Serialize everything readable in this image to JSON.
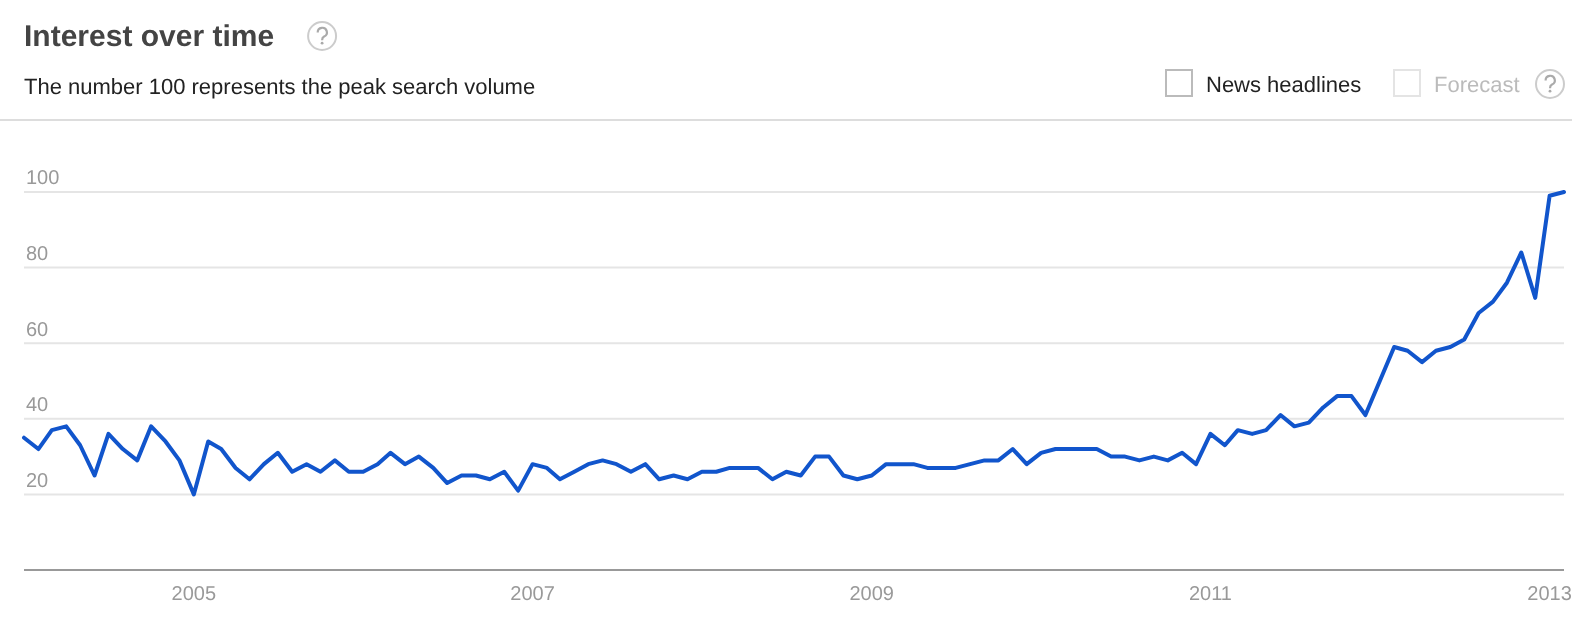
{
  "chart_data": {
    "type": "line",
    "title": "Interest over time",
    "subtitle": "The number 100 represents the peak search volume",
    "annotations": [
      "News headlines",
      "Forecast"
    ],
    "x": [
      "2004-01",
      "2004-02",
      "2004-03",
      "2004-04",
      "2004-05",
      "2004-06",
      "2004-07",
      "2004-08",
      "2004-09",
      "2004-10",
      "2004-11",
      "2004-12",
      "2005-01",
      "2005-02",
      "2005-03",
      "2005-04",
      "2005-05",
      "2005-06",
      "2005-07",
      "2005-08",
      "2005-09",
      "2005-10",
      "2005-11",
      "2005-12",
      "2006-01",
      "2006-02",
      "2006-03",
      "2006-04",
      "2006-05",
      "2006-06",
      "2006-07",
      "2006-08",
      "2006-09",
      "2006-10",
      "2006-11",
      "2006-12",
      "2007-01",
      "2007-02",
      "2007-03",
      "2007-04",
      "2007-05",
      "2007-06",
      "2007-07",
      "2007-08",
      "2007-09",
      "2007-10",
      "2007-11",
      "2007-12",
      "2008-01",
      "2008-02",
      "2008-03",
      "2008-04",
      "2008-05",
      "2008-06",
      "2008-07",
      "2008-08",
      "2008-09",
      "2008-10",
      "2008-11",
      "2008-12",
      "2009-01",
      "2009-02",
      "2009-03",
      "2009-04",
      "2009-05",
      "2009-06",
      "2009-07",
      "2009-08",
      "2009-09",
      "2009-10",
      "2009-11",
      "2009-12",
      "2010-01",
      "2010-02",
      "2010-03",
      "2010-04",
      "2010-05",
      "2010-06",
      "2010-07",
      "2010-08",
      "2010-09",
      "2010-10",
      "2010-11",
      "2010-12",
      "2011-01",
      "2011-02",
      "2011-03",
      "2011-04",
      "2011-05",
      "2011-06",
      "2011-07",
      "2011-08",
      "2011-09",
      "2011-10",
      "2011-11",
      "2011-12",
      "2012-01",
      "2012-02",
      "2012-03",
      "2012-04",
      "2012-05",
      "2012-06",
      "2012-07",
      "2012-08",
      "2012-09",
      "2012-10",
      "2012-11",
      "2012-12",
      "2013-01",
      "2013-02"
    ],
    "series": [
      {
        "color": "#1155cc",
        "values": [
          35,
          32,
          37,
          38,
          33,
          25,
          36,
          32,
          29,
          38,
          34,
          29,
          20,
          34,
          32,
          27,
          24,
          28,
          31,
          26,
          28,
          26,
          29,
          26,
          26,
          28,
          31,
          28,
          30,
          27,
          23,
          25,
          25,
          24,
          26,
          21,
          28,
          27,
          24,
          26,
          28,
          29,
          28,
          26,
          28,
          24,
          25,
          24,
          26,
          26,
          27,
          27,
          27,
          24,
          26,
          25,
          30,
          30,
          25,
          24,
          25,
          28,
          28,
          28,
          27,
          27,
          27,
          28,
          29,
          29,
          32,
          28,
          31,
          32,
          32,
          32,
          32,
          30,
          30,
          29,
          30,
          29,
          31,
          28,
          36,
          33,
          37,
          36,
          37,
          41,
          38,
          39,
          43,
          46,
          46,
          41,
          50,
          59,
          58,
          55,
          58,
          59,
          61,
          68,
          71,
          76,
          84,
          72,
          99,
          100
        ]
      }
    ],
    "xlim": [
      "2004-01",
      "2013-02"
    ],
    "xticks": [
      "2005",
      "2007",
      "2009",
      "2011",
      "2013"
    ],
    "ylim": [
      0,
      100
    ],
    "yticks": [
      20,
      40,
      60,
      80,
      100
    ],
    "grid": "y",
    "marker": "none",
    "line_style": "solid"
  }
}
